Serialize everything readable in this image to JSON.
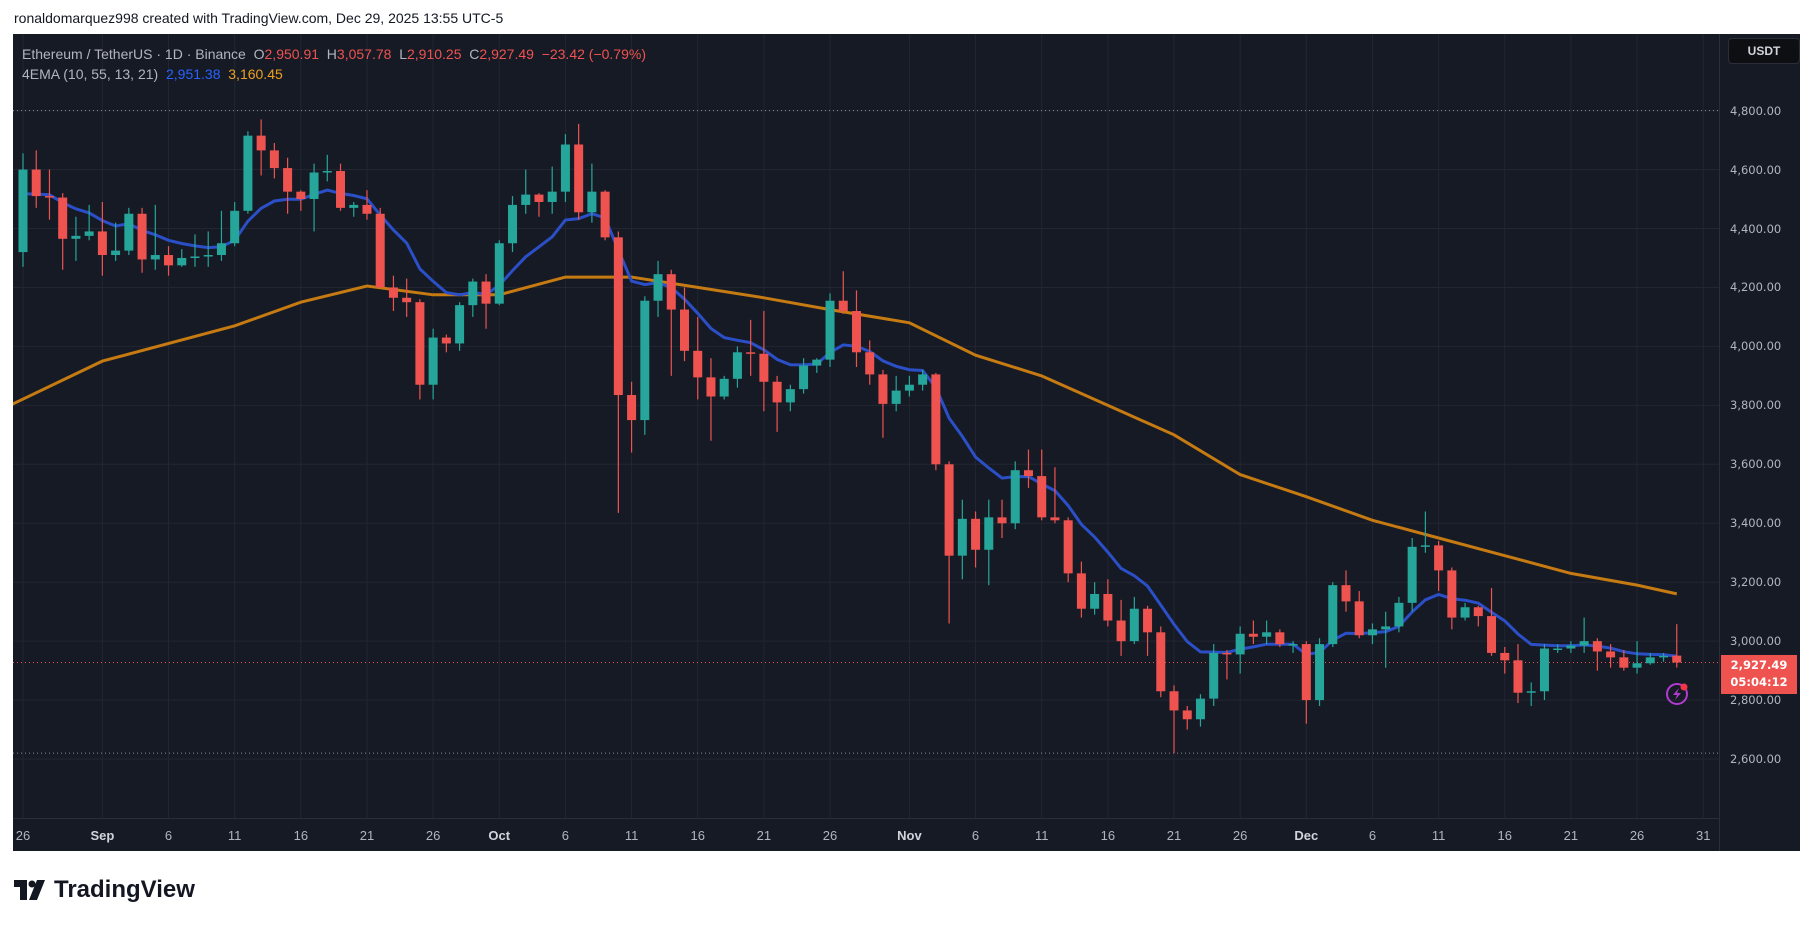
{
  "credit": "ronaldomarquez998 created with TradingView.com, Dec 29, 2025 13:55 UTC-5",
  "legend": {
    "symbol": "Ethereum / TetherUS · 1D · Binance",
    "o_label": "O",
    "o": "2,950.91",
    "h_label": "H",
    "h": "3,057.78",
    "l_label": "L",
    "l": "2,910.25",
    "c_label": "C",
    "c": "2,927.49",
    "change": "−23.42 (−0.79%)",
    "indicator": "4EMA (10, 55, 13, 21)",
    "ema_fast": "2,951.38",
    "ema_slow": "3,160.45"
  },
  "currency_button": "USDT",
  "last_price": "2,927.49",
  "countdown": "05:04:12",
  "brand": "TradingView",
  "colors": {
    "background": "#161a25",
    "grid": "#232632",
    "up": "#26a69a",
    "down": "#ef5350",
    "ema_fast": "#2b4fc7",
    "ema_slow": "#c57a12"
  },
  "chart_data": {
    "type": "candlestick",
    "ylim": [
      2400,
      4950
    ],
    "y_ticks": [
      "4,800.00",
      "4,600.00",
      "4,400.00",
      "4,200.00",
      "4,000.00",
      "3,800.00",
      "3,600.00",
      "3,400.00",
      "3,200.00",
      "3,000.00",
      "2,800.00",
      "2,600.00"
    ],
    "y_tick_values": [
      4800,
      4600,
      4400,
      4200,
      4000,
      3800,
      3600,
      3400,
      3200,
      3000,
      2800,
      2600
    ],
    "dotted_levels": [
      4800,
      2620
    ],
    "x_ticks": [
      {
        "label": "26",
        "date": "08-26"
      },
      {
        "label": "Sep",
        "date": "09-01",
        "month": true
      },
      {
        "label": "6",
        "date": "09-06"
      },
      {
        "label": "11",
        "date": "09-11"
      },
      {
        "label": "16",
        "date": "09-16"
      },
      {
        "label": "21",
        "date": "09-21"
      },
      {
        "label": "26",
        "date": "09-26"
      },
      {
        "label": "Oct",
        "date": "10-01",
        "month": true
      },
      {
        "label": "6",
        "date": "10-06"
      },
      {
        "label": "11",
        "date": "10-11"
      },
      {
        "label": "16",
        "date": "10-16"
      },
      {
        "label": "21",
        "date": "10-21"
      },
      {
        "label": "26",
        "date": "10-26"
      },
      {
        "label": "Nov",
        "date": "11-01",
        "month": true
      },
      {
        "label": "6",
        "date": "11-06"
      },
      {
        "label": "11",
        "date": "11-11"
      },
      {
        "label": "16",
        "date": "11-16"
      },
      {
        "label": "21",
        "date": "11-21"
      },
      {
        "label": "26",
        "date": "11-26"
      },
      {
        "label": "Dec",
        "date": "12-01",
        "month": true
      },
      {
        "label": "6",
        "date": "12-06"
      },
      {
        "label": "11",
        "date": "12-11"
      },
      {
        "label": "16",
        "date": "12-16"
      },
      {
        "label": "21",
        "date": "12-21"
      },
      {
        "label": "26",
        "date": "12-26"
      },
      {
        "label": "31",
        "date": "12-31"
      }
    ],
    "candles_columns": [
      "date",
      "open",
      "high",
      "low",
      "close"
    ],
    "candles": [
      [
        "08-26",
        4320,
        4655,
        4270,
        4600
      ],
      [
        "08-27",
        4600,
        4665,
        4470,
        4510
      ],
      [
        "08-28",
        4510,
        4600,
        4430,
        4505
      ],
      [
        "08-29",
        4505,
        4520,
        4260,
        4365
      ],
      [
        "08-30",
        4365,
        4440,
        4290,
        4375
      ],
      [
        "08-31",
        4375,
        4480,
        4360,
        4390
      ],
      [
        "09-01",
        4390,
        4490,
        4240,
        4310
      ],
      [
        "09-02",
        4310,
        4420,
        4290,
        4325
      ],
      [
        "09-03",
        4325,
        4470,
        4310,
        4450
      ],
      [
        "09-04",
        4450,
        4470,
        4250,
        4295
      ],
      [
        "09-05",
        4295,
        4480,
        4260,
        4310
      ],
      [
        "09-06",
        4310,
        4340,
        4240,
        4275
      ],
      [
        "09-07",
        4275,
        4330,
        4270,
        4300
      ],
      [
        "09-08",
        4300,
        4380,
        4270,
        4305
      ],
      [
        "09-09",
        4305,
        4390,
        4270,
        4310
      ],
      [
        "09-10",
        4310,
        4460,
        4290,
        4350
      ],
      [
        "09-11",
        4350,
        4490,
        4340,
        4460
      ],
      [
        "09-12",
        4460,
        4730,
        4450,
        4715
      ],
      [
        "09-13",
        4715,
        4770,
        4580,
        4665
      ],
      [
        "09-14",
        4665,
        4690,
        4570,
        4605
      ],
      [
        "09-15",
        4605,
        4640,
        4450,
        4525
      ],
      [
        "09-16",
        4525,
        4530,
        4460,
        4500
      ],
      [
        "09-17",
        4500,
        4620,
        4390,
        4590
      ],
      [
        "09-18",
        4590,
        4650,
        4560,
        4595
      ],
      [
        "09-19",
        4595,
        4620,
        4460,
        4470
      ],
      [
        "09-20",
        4470,
        4490,
        4440,
        4480
      ],
      [
        "09-21",
        4480,
        4530,
        4430,
        4450
      ],
      [
        "09-22",
        4450,
        4470,
        4200,
        4200
      ],
      [
        "09-23",
        4200,
        4240,
        4120,
        4165
      ],
      [
        "09-24",
        4165,
        4230,
        4100,
        4150
      ],
      [
        "09-25",
        4150,
        4160,
        3820,
        3870
      ],
      [
        "09-26",
        3870,
        4060,
        3820,
        4030
      ],
      [
        "09-27",
        4030,
        4040,
        3980,
        4010
      ],
      [
        "09-28",
        4010,
        4150,
        3985,
        4140
      ],
      [
        "09-29",
        4140,
        4230,
        4100,
        4220
      ],
      [
        "09-30",
        4220,
        4245,
        4060,
        4145
      ],
      [
        "10-01",
        4145,
        4360,
        4140,
        4350
      ],
      [
        "10-02",
        4350,
        4510,
        4320,
        4480
      ],
      [
        "10-03",
        4480,
        4600,
        4450,
        4515
      ],
      [
        "10-04",
        4515,
        4520,
        4440,
        4490
      ],
      [
        "10-05",
        4490,
        4610,
        4450,
        4525
      ],
      [
        "10-06",
        4525,
        4720,
        4490,
        4685
      ],
      [
        "10-07",
        4685,
        4755,
        4430,
        4455
      ],
      [
        "10-08",
        4455,
        4620,
        4420,
        4525
      ],
      [
        "10-09",
        4525,
        4530,
        4360,
        4370
      ],
      [
        "10-10",
        4370,
        4390,
        3435,
        3835
      ],
      [
        "10-11",
        3835,
        3880,
        3640,
        3750
      ],
      [
        "10-12",
        3750,
        4170,
        3700,
        4155
      ],
      [
        "10-13",
        4155,
        4290,
        4100,
        4245
      ],
      [
        "10-14",
        4245,
        4260,
        3900,
        4125
      ],
      [
        "10-15",
        4125,
        4200,
        3950,
        3985
      ],
      [
        "10-16",
        3985,
        4100,
        3820,
        3895
      ],
      [
        "10-17",
        3895,
        3960,
        3680,
        3830
      ],
      [
        "10-18",
        3830,
        3900,
        3820,
        3890
      ],
      [
        "10-19",
        3890,
        4000,
        3860,
        3980
      ],
      [
        "10-20",
        3980,
        4090,
        3900,
        3975
      ],
      [
        "10-21",
        3975,
        4120,
        3780,
        3880
      ],
      [
        "10-22",
        3880,
        3900,
        3710,
        3810
      ],
      [
        "10-23",
        3810,
        3870,
        3780,
        3855
      ],
      [
        "10-24",
        3855,
        3960,
        3840,
        3935
      ],
      [
        "10-25",
        3935,
        3960,
        3910,
        3955
      ],
      [
        "10-26",
        3955,
        4180,
        3930,
        4155
      ],
      [
        "10-27",
        4155,
        4255,
        4110,
        4120
      ],
      [
        "10-28",
        4120,
        4190,
        3930,
        3980
      ],
      [
        "10-29",
        3980,
        4020,
        3870,
        3905
      ],
      [
        "10-30",
        3905,
        3920,
        3690,
        3805
      ],
      [
        "10-31",
        3805,
        3900,
        3780,
        3850
      ],
      [
        "11-01",
        3850,
        3900,
        3830,
        3870
      ],
      [
        "11-02",
        3870,
        3920,
        3850,
        3905
      ],
      [
        "11-03",
        3905,
        3910,
        3580,
        3600
      ],
      [
        "11-04",
        3600,
        3610,
        3060,
        3290
      ],
      [
        "11-05",
        3290,
        3480,
        3210,
        3415
      ],
      [
        "11-06",
        3415,
        3440,
        3250,
        3310
      ],
      [
        "11-07",
        3310,
        3480,
        3190,
        3420
      ],
      [
        "11-08",
        3420,
        3480,
        3350,
        3400
      ],
      [
        "11-09",
        3400,
        3610,
        3380,
        3580
      ],
      [
        "11-10",
        3580,
        3650,
        3520,
        3560
      ],
      [
        "11-11",
        3560,
        3650,
        3410,
        3420
      ],
      [
        "11-12",
        3420,
        3590,
        3400,
        3410
      ],
      [
        "11-13",
        3410,
        3420,
        3200,
        3230
      ],
      [
        "11-14",
        3230,
        3270,
        3080,
        3110
      ],
      [
        "11-15",
        3110,
        3200,
        3090,
        3160
      ],
      [
        "11-16",
        3160,
        3210,
        3050,
        3070
      ],
      [
        "11-17",
        3070,
        3140,
        2950,
        3000
      ],
      [
        "11-18",
        3000,
        3150,
        2990,
        3110
      ],
      [
        "11-19",
        3110,
        3120,
        2950,
        3030
      ],
      [
        "11-20",
        3030,
        3050,
        2810,
        2830
      ],
      [
        "11-21",
        2830,
        2850,
        2620,
        2765
      ],
      [
        "11-22",
        2765,
        2780,
        2700,
        2735
      ],
      [
        "11-23",
        2735,
        2820,
        2710,
        2805
      ],
      [
        "11-24",
        2805,
        2990,
        2780,
        2960
      ],
      [
        "11-25",
        2960,
        2970,
        2870,
        2955
      ],
      [
        "11-26",
        2955,
        3050,
        2890,
        3025
      ],
      [
        "11-27",
        3025,
        3070,
        2990,
        3015
      ],
      [
        "11-28",
        3015,
        3070,
        2990,
        3030
      ],
      [
        "11-29",
        3030,
        3040,
        2980,
        2990
      ],
      [
        "11-30",
        2990,
        3000,
        2960,
        2990
      ],
      [
        "12-01",
        2990,
        3000,
        2720,
        2800
      ],
      [
        "12-02",
        2800,
        3010,
        2780,
        2990
      ],
      [
        "12-03",
        2990,
        3200,
        2980,
        3190
      ],
      [
        "12-04",
        3190,
        3240,
        3100,
        3135
      ],
      [
        "12-05",
        3135,
        3170,
        3010,
        3020
      ],
      [
        "12-06",
        3020,
        3060,
        2990,
        3040
      ],
      [
        "12-07",
        3040,
        3100,
        2910,
        3050
      ],
      [
        "12-08",
        3050,
        3150,
        3030,
        3130
      ],
      [
        "12-09",
        3130,
        3350,
        3100,
        3320
      ],
      [
        "12-10",
        3320,
        3440,
        3300,
        3325
      ],
      [
        "12-11",
        3325,
        3340,
        3170,
        3240
      ],
      [
        "12-12",
        3240,
        3250,
        3040,
        3080
      ],
      [
        "12-13",
        3080,
        3130,
        3070,
        3115
      ],
      [
        "12-14",
        3115,
        3120,
        3050,
        3085
      ],
      [
        "12-15",
        3085,
        3180,
        2950,
        2960
      ],
      [
        "12-16",
        2960,
        2980,
        2890,
        2935
      ],
      [
        "12-17",
        2935,
        2990,
        2790,
        2825
      ],
      [
        "12-18",
        2825,
        2860,
        2780,
        2830
      ],
      [
        "12-19",
        2830,
        2990,
        2800,
        2975
      ],
      [
        "12-20",
        2975,
        2990,
        2960,
        2975
      ],
      [
        "12-21",
        2975,
        3000,
        2960,
        2985
      ],
      [
        "12-22",
        2985,
        3080,
        2960,
        3000
      ],
      [
        "12-23",
        3000,
        3010,
        2900,
        2965
      ],
      [
        "12-24",
        2965,
        2990,
        2910,
        2945
      ],
      [
        "12-25",
        2945,
        2970,
        2900,
        2910
      ],
      [
        "12-26",
        2910,
        3000,
        2890,
        2925
      ],
      [
        "12-27",
        2925,
        2960,
        2920,
        2945
      ],
      [
        "12-28",
        2945,
        2960,
        2930,
        2950
      ],
      [
        "12-29",
        2950.91,
        3057.78,
        2910.25,
        2927.49
      ]
    ],
    "ema_fast_period": 10,
    "ema_slow_points": [
      [
        "08-25",
        3800
      ],
      [
        "09-01",
        3950
      ],
      [
        "09-11",
        4070
      ],
      [
        "09-16",
        4150
      ],
      [
        "09-21",
        4205
      ],
      [
        "09-26",
        4175
      ],
      [
        "10-01",
        4175
      ],
      [
        "10-06",
        4235
      ],
      [
        "10-11",
        4235
      ],
      [
        "10-16",
        4200
      ],
      [
        "10-21",
        4165
      ],
      [
        "10-26",
        4125
      ],
      [
        "11-01",
        4080
      ],
      [
        "11-06",
        3970
      ],
      [
        "11-11",
        3900
      ],
      [
        "11-16",
        3800
      ],
      [
        "11-21",
        3700
      ],
      [
        "11-26",
        3565
      ],
      [
        "12-01",
        3490
      ],
      [
        "12-06",
        3410
      ],
      [
        "12-11",
        3350
      ],
      [
        "12-16",
        3290
      ],
      [
        "12-21",
        3230
      ],
      [
        "12-26",
        3190
      ],
      [
        "12-29",
        3160.45
      ]
    ]
  }
}
